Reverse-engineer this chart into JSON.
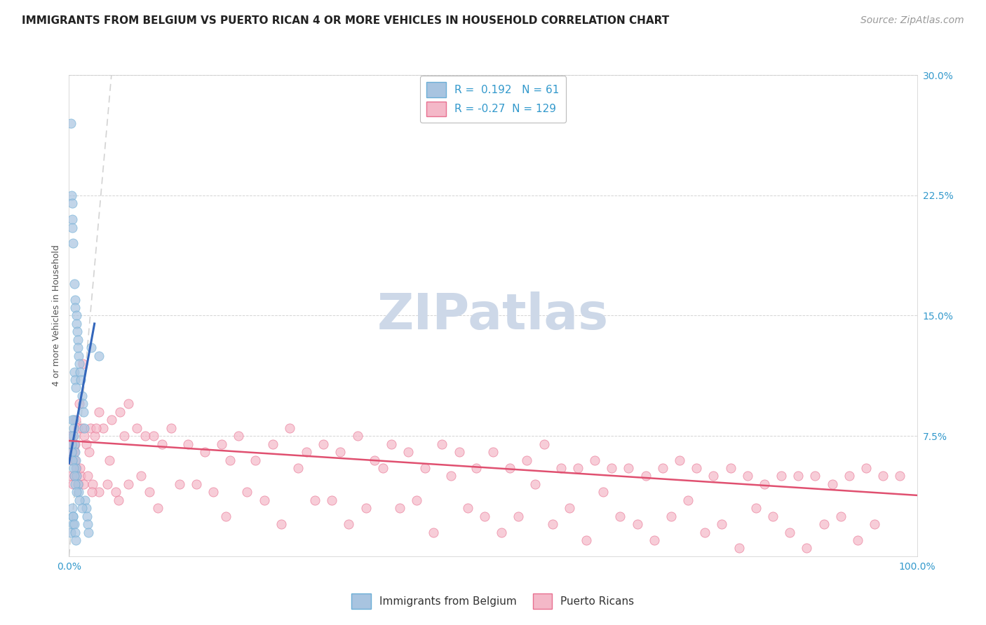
{
  "title": "IMMIGRANTS FROM BELGIUM VS PUERTO RICAN 4 OR MORE VEHICLES IN HOUSEHOLD CORRELATION CHART",
  "source": "Source: ZipAtlas.com",
  "ylabel": "4 or more Vehicles in Household",
  "ytick_vals": [
    0,
    7.5,
    15.0,
    22.5,
    30.0
  ],
  "ytick_labels": [
    "",
    "7.5%",
    "15.0%",
    "22.5%",
    "30.0%"
  ],
  "xtick_vals": [
    0,
    100
  ],
  "xtick_labels": [
    "0.0%",
    "100.0%"
  ],
  "xlim": [
    0,
    100
  ],
  "ylim": [
    0,
    30
  ],
  "legend_entries": [
    {
      "label": "Immigrants from Belgium",
      "color": "#a8c4e0",
      "edge": "#6baed6",
      "R": 0.192,
      "N": 61
    },
    {
      "label": "Puerto Ricans",
      "color": "#f4b8c8",
      "edge": "#e87090",
      "R": -0.27,
      "N": 129
    }
  ],
  "watermark_text": "ZIPatlas",
  "watermark_color": "#cdd8e8",
  "watermark_fontsize": 52,
  "blue_scatter_x": [
    0.18,
    0.22,
    0.3,
    0.35,
    0.38,
    0.4,
    0.42,
    0.45,
    0.48,
    0.5,
    0.52,
    0.55,
    0.58,
    0.6,
    0.62,
    0.65,
    0.68,
    0.7,
    0.72,
    0.75,
    0.78,
    0.8,
    0.82,
    0.85,
    0.88,
    0.9,
    0.95,
    1.0,
    1.05,
    1.1,
    1.15,
    1.2,
    1.3,
    1.4,
    1.5,
    1.6,
    1.7,
    1.8,
    1.9,
    2.0,
    2.1,
    2.2,
    2.3,
    0.25,
    0.28,
    0.32,
    0.36,
    0.55,
    0.65,
    0.75,
    0.85,
    1.0,
    1.2,
    1.5,
    0.4,
    0.5,
    0.6,
    0.7,
    0.8,
    2.6,
    3.5
  ],
  "blue_scatter_y": [
    27.0,
    1.5,
    22.5,
    22.0,
    21.0,
    20.5,
    3.0,
    2.5,
    2.0,
    19.5,
    8.5,
    8.0,
    7.5,
    17.0,
    7.0,
    11.5,
    11.0,
    16.0,
    6.5,
    15.5,
    6.0,
    10.5,
    5.5,
    15.0,
    5.0,
    14.5,
    14.0,
    13.5,
    4.5,
    4.0,
    12.5,
    12.0,
    11.5,
    11.0,
    10.0,
    9.5,
    9.0,
    8.0,
    3.5,
    3.0,
    2.5,
    2.0,
    1.5,
    7.5,
    7.0,
    6.5,
    6.0,
    5.5,
    5.0,
    4.5,
    4.0,
    13.0,
    3.5,
    3.0,
    8.5,
    2.5,
    2.0,
    1.5,
    1.0,
    13.0,
    12.5
  ],
  "pink_scatter_x": [
    0.2,
    0.3,
    0.4,
    0.5,
    0.6,
    0.7,
    0.8,
    0.9,
    1.0,
    1.2,
    1.5,
    1.8,
    2.0,
    2.5,
    3.0,
    3.5,
    4.0,
    5.0,
    6.0,
    7.0,
    8.0,
    9.0,
    10.0,
    12.0,
    14.0,
    16.0,
    18.0,
    20.0,
    22.0,
    24.0,
    26.0,
    28.0,
    30.0,
    32.0,
    34.0,
    36.0,
    38.0,
    40.0,
    42.0,
    44.0,
    46.0,
    48.0,
    50.0,
    52.0,
    54.0,
    56.0,
    58.0,
    60.0,
    62.0,
    64.0,
    66.0,
    68.0,
    70.0,
    72.0,
    74.0,
    76.0,
    78.0,
    80.0,
    82.0,
    84.0,
    86.0,
    88.0,
    90.0,
    92.0,
    94.0,
    96.0,
    98.0,
    0.25,
    0.45,
    0.65,
    0.85,
    1.1,
    1.4,
    1.7,
    2.2,
    2.8,
    3.5,
    4.5,
    5.5,
    7.0,
    9.5,
    13.0,
    17.0,
    23.0,
    29.0,
    35.0,
    41.0,
    47.0,
    53.0,
    59.0,
    65.0,
    71.0,
    77.0,
    83.0,
    89.0,
    95.0,
    1.6,
    3.2,
    6.5,
    11.0,
    19.0,
    27.0,
    37.0,
    45.0,
    55.0,
    63.0,
    73.0,
    81.0,
    91.0,
    2.4,
    4.8,
    8.5,
    15.0,
    21.0,
    31.0,
    39.0,
    49.0,
    57.0,
    67.0,
    75.0,
    85.0,
    93.0,
    0.35,
    0.75,
    1.3,
    2.7,
    5.8,
    10.5,
    18.5,
    25.0,
    33.0,
    43.0,
    51.0,
    61.0,
    69.0,
    79.0,
    87.0
  ],
  "pink_scatter_y": [
    7.5,
    6.0,
    7.0,
    7.5,
    6.5,
    7.0,
    8.5,
    5.5,
    8.0,
    9.5,
    8.0,
    7.5,
    7.0,
    8.0,
    7.5,
    9.0,
    8.0,
    8.5,
    9.0,
    9.5,
    8.0,
    7.5,
    7.5,
    8.0,
    7.0,
    6.5,
    7.0,
    7.5,
    6.0,
    7.0,
    8.0,
    6.5,
    7.0,
    6.5,
    7.5,
    6.0,
    7.0,
    6.5,
    5.5,
    7.0,
    6.5,
    5.5,
    6.5,
    5.5,
    6.0,
    7.0,
    5.5,
    5.5,
    6.0,
    5.5,
    5.5,
    5.0,
    5.5,
    6.0,
    5.5,
    5.0,
    5.5,
    5.0,
    4.5,
    5.0,
    5.0,
    5.0,
    4.5,
    5.0,
    5.5,
    5.0,
    5.0,
    5.0,
    4.5,
    5.0,
    5.0,
    4.5,
    5.0,
    4.5,
    5.0,
    4.5,
    4.0,
    4.5,
    4.0,
    4.5,
    4.0,
    4.5,
    4.0,
    3.5,
    3.5,
    3.0,
    3.5,
    3.0,
    2.5,
    3.0,
    2.5,
    2.5,
    2.0,
    2.5,
    2.0,
    2.0,
    12.0,
    8.0,
    7.5,
    7.0,
    6.0,
    5.5,
    5.5,
    5.0,
    4.5,
    4.0,
    3.5,
    3.0,
    2.5,
    6.5,
    6.0,
    5.0,
    4.5,
    4.0,
    3.5,
    3.0,
    2.5,
    2.0,
    2.0,
    1.5,
    1.5,
    1.0,
    6.5,
    6.0,
    5.5,
    4.0,
    3.5,
    3.0,
    2.5,
    2.0,
    2.0,
    1.5,
    1.5,
    1.0,
    1.0,
    0.5,
    0.5
  ],
  "blue_trend_x": [
    0.0,
    3.0
  ],
  "blue_trend_y": [
    5.8,
    14.5
  ],
  "pink_trend_x": [
    0.0,
    100.0
  ],
  "pink_trend_y": [
    7.2,
    3.8
  ],
  "diag_line_x": [
    0.0,
    5.0
  ],
  "diag_line_y": [
    0.0,
    30.0
  ],
  "background_color": "#ffffff",
  "grid_color": "#e8e8e8",
  "grid_dash_color": "#d0d0d0",
  "blue_color": "#6baed6",
  "blue_fill": "#a8c4e0",
  "pink_color": "#e87090",
  "pink_fill": "#f4b8c8",
  "trend_blue_color": "#3366bb",
  "trend_pink_color": "#e05070",
  "title_fontsize": 11,
  "axis_label_fontsize": 9,
  "tick_fontsize": 10,
  "legend_fontsize": 11,
  "source_fontsize": 10
}
